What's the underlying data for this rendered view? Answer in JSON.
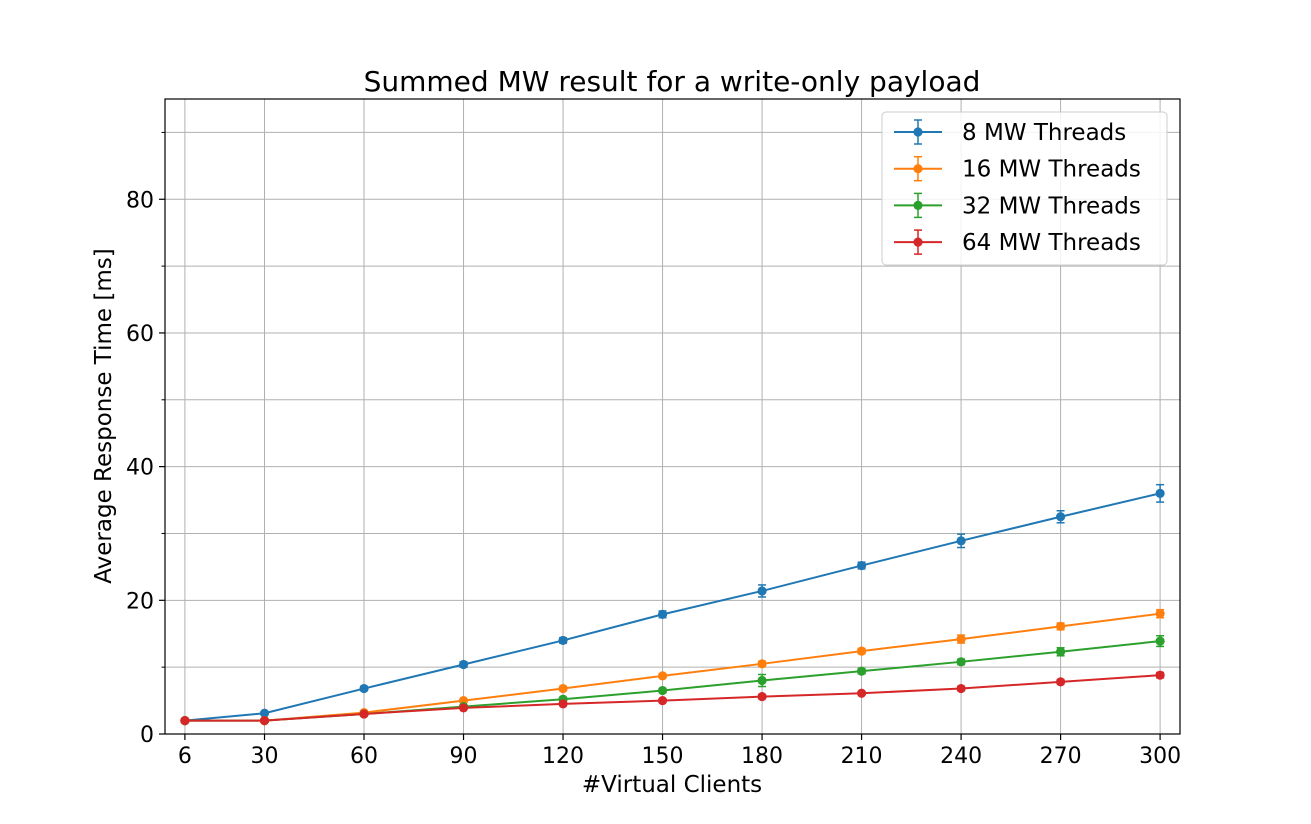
{
  "chart_data": {
    "type": "line",
    "title": "Summed MW result for a write-only payload",
    "xlabel": "#Virtual Clients",
    "ylabel": "Average Response Time [ms]",
    "x": [
      6,
      30,
      60,
      90,
      120,
      150,
      180,
      210,
      240,
      270,
      300
    ],
    "x_ticks": [
      6,
      30,
      60,
      90,
      120,
      150,
      180,
      210,
      240,
      270,
      300
    ],
    "xlim": [
      0,
      306
    ],
    "ylim": [
      0,
      95
    ],
    "y_ticks": [
      0,
      20,
      40,
      60,
      80
    ],
    "y_minor_ticks": [
      10,
      30,
      50,
      70,
      90
    ],
    "grid": true,
    "legend_position": "top-right",
    "series": [
      {
        "name": "8 MW Threads",
        "color": "#1f77b4",
        "values": [
          2.0,
          3.1,
          6.8,
          10.4,
          14.0,
          17.9,
          21.4,
          25.2,
          28.9,
          32.5,
          36.0
        ],
        "errors": [
          0.1,
          0.2,
          0.3,
          0.4,
          0.4,
          0.5,
          0.9,
          0.5,
          1.0,
          0.9,
          1.3
        ]
      },
      {
        "name": "16 MW Threads",
        "color": "#ff7f0e",
        "values": [
          2.0,
          2.0,
          3.2,
          5.0,
          6.8,
          8.7,
          10.5,
          12.4,
          14.2,
          16.1,
          18.0
        ],
        "errors": [
          0.1,
          0.1,
          0.2,
          0.2,
          0.3,
          0.3,
          0.4,
          0.4,
          0.6,
          0.5,
          0.6
        ]
      },
      {
        "name": "32 MW Threads",
        "color": "#2ca02c",
        "values": [
          2.0,
          2.0,
          3.0,
          4.1,
          5.2,
          6.5,
          8.0,
          9.4,
          10.8,
          12.3,
          13.9
        ],
        "errors": [
          0.1,
          0.1,
          0.2,
          0.2,
          0.3,
          0.3,
          0.9,
          0.4,
          0.4,
          0.6,
          0.8
        ]
      },
      {
        "name": "64 MW Threads",
        "color": "#d62728",
        "values": [
          2.0,
          2.0,
          3.0,
          3.9,
          4.5,
          5.0,
          5.6,
          6.1,
          6.8,
          7.8,
          8.8
        ],
        "errors": [
          0.1,
          0.1,
          0.2,
          0.2,
          0.2,
          0.2,
          0.3,
          0.2,
          0.3,
          0.3,
          0.4
        ]
      }
    ]
  }
}
